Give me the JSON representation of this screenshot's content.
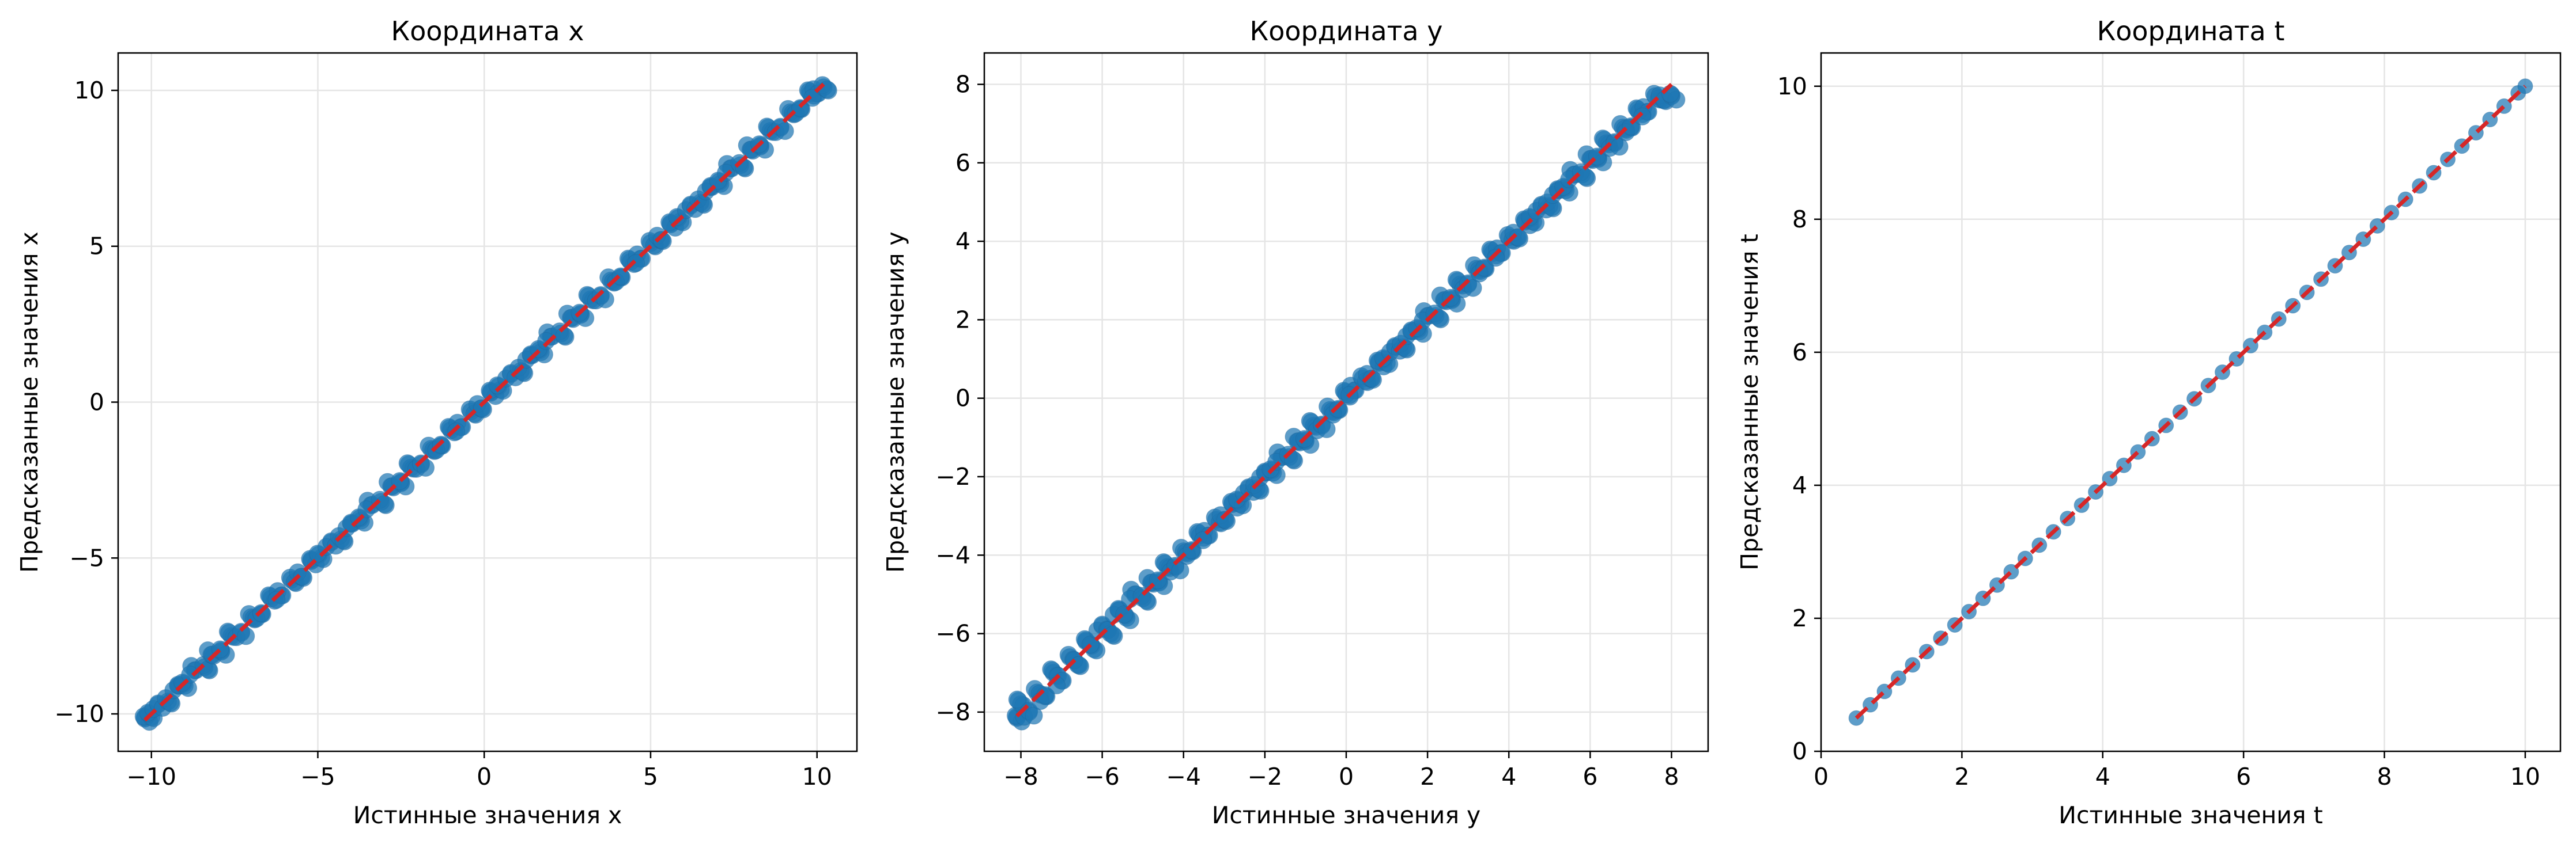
{
  "chart_data": [
    {
      "type": "scatter",
      "title": "Координата x",
      "xlabel": "Истинные значения x",
      "ylabel": "Предсказанные значения x",
      "xlim": [
        -11,
        11.2
      ],
      "ylim": [
        -11.2,
        11.2
      ],
      "xticks": [
        -10,
        -5,
        0,
        5,
        10
      ],
      "yticks": [
        -10,
        -5,
        0,
        5,
        10
      ],
      "xtick_labels": [
        "−10",
        "−5",
        "0",
        "5",
        "10"
      ],
      "ytick_labels": [
        "−10",
        "−5",
        "0",
        "5",
        "10"
      ],
      "grid": true,
      "scatter_color": "#1f77b4",
      "reference_line": {
        "from": [
          -10.2,
          -10.2
        ],
        "to": [
          10.2,
          10.2
        ],
        "color": "#d62728",
        "style": "dashed"
      },
      "series": [
        {
          "x": [
            -10.2,
            -10.0,
            -9.8,
            -9.5,
            -9.2,
            -9.0,
            -8.7,
            -8.4,
            -8.2,
            -7.9,
            -7.6,
            -7.3,
            -7.0,
            -6.7,
            -6.4,
            -6.1,
            -5.8,
            -5.5,
            -5.2,
            -4.9,
            -4.6,
            -4.3,
            -4.0,
            -3.7,
            -3.4,
            -3.1,
            -2.8,
            -2.5,
            -2.2,
            -1.9,
            -1.6,
            -1.3,
            -1.0,
            -0.7,
            -0.4,
            -0.1,
            0.2,
            0.5,
            0.8,
            1.1,
            1.4,
            1.7,
            2.0,
            2.3,
            2.6,
            2.9,
            3.2,
            3.5,
            3.8,
            4.1,
            4.4,
            4.7,
            5.0,
            5.3,
            5.6,
            5.9,
            6.2,
            6.5,
            6.8,
            7.1,
            7.4,
            7.7,
            8.0,
            8.3,
            8.6,
            8.9,
            9.2,
            9.5,
            9.8,
            10.0,
            10.2
          ],
          "y": [
            -10.15,
            -10.1,
            -9.7,
            -9.6,
            -9.1,
            -9.1,
            -8.6,
            -8.5,
            -8.1,
            -8.0,
            -7.5,
            -7.4,
            -6.9,
            -6.8,
            -6.3,
            -6.2,
            -5.7,
            -5.6,
            -5.1,
            -5.0,
            -4.5,
            -4.4,
            -3.9,
            -3.8,
            -3.3,
            -3.2,
            -2.7,
            -2.6,
            -2.1,
            -2.0,
            -1.5,
            -1.4,
            -0.9,
            -0.8,
            -0.3,
            -0.2,
            0.3,
            0.4,
            0.9,
            1.0,
            1.5,
            1.6,
            2.1,
            2.2,
            2.7,
            2.8,
            3.3,
            3.4,
            3.9,
            4.0,
            4.5,
            4.6,
            5.1,
            5.2,
            5.7,
            5.8,
            6.3,
            6.4,
            6.9,
            7.0,
            7.5,
            7.6,
            8.1,
            8.2,
            8.7,
            8.8,
            9.3,
            9.4,
            9.9,
            9.9,
            10.1
          ]
        }
      ]
    },
    {
      "type": "scatter",
      "title": "Координата y",
      "xlabel": "Истинные значения y",
      "ylabel": "Предсказанные значения y",
      "xlim": [
        -8.9,
        8.9
      ],
      "ylim": [
        -9.0,
        8.8
      ],
      "xticks": [
        -8,
        -6,
        -4,
        -2,
        0,
        2,
        4,
        6,
        8
      ],
      "yticks": [
        -8,
        -6,
        -4,
        -2,
        0,
        2,
        4,
        6,
        8
      ],
      "xtick_labels": [
        "−8",
        "−6",
        "−4",
        "−2",
        "0",
        "2",
        "4",
        "6",
        "8"
      ],
      "ytick_labels": [
        "−8",
        "−6",
        "−4",
        "−2",
        "0",
        "2",
        "4",
        "6",
        "8"
      ],
      "grid": true,
      "scatter_color": "#1f77b4",
      "reference_line": {
        "from": [
          -8.1,
          -8.1
        ],
        "to": [
          8.0,
          8.0
        ],
        "color": "#d62728",
        "style": "dashed"
      },
      "series": [
        {
          "x": [
            -8.1,
            -8.0,
            -7.8,
            -7.6,
            -7.4,
            -7.2,
            -7.0,
            -6.8,
            -6.6,
            -6.4,
            -6.2,
            -6.0,
            -5.8,
            -5.6,
            -5.4,
            -5.2,
            -5.0,
            -4.8,
            -4.6,
            -4.4,
            -4.2,
            -4.0,
            -3.8,
            -3.6,
            -3.4,
            -3.2,
            -3.0,
            -2.8,
            -2.6,
            -2.4,
            -2.2,
            -2.0,
            -1.8,
            -1.6,
            -1.4,
            -1.2,
            -1.0,
            -0.8,
            -0.6,
            -0.4,
            -0.2,
            0.0,
            0.2,
            0.4,
            0.6,
            0.8,
            1.0,
            1.2,
            1.4,
            1.6,
            1.8,
            2.0,
            2.2,
            2.4,
            2.6,
            2.8,
            3.0,
            3.2,
            3.4,
            3.6,
            3.8,
            4.0,
            4.2,
            4.4,
            4.6,
            4.8,
            5.0,
            5.2,
            5.4,
            5.6,
            5.8,
            6.0,
            6.2,
            6.4,
            6.6,
            6.8,
            7.0,
            7.2,
            7.4,
            7.6,
            7.8,
            8.0
          ],
          "y": [
            -8.15,
            -7.8,
            -8.0,
            -7.5,
            -7.6,
            -7.0,
            -7.2,
            -6.6,
            -6.8,
            -6.2,
            -6.4,
            -5.8,
            -6.0,
            -5.4,
            -5.6,
            -5.0,
            -5.1,
            -4.7,
            -4.7,
            -4.3,
            -4.3,
            -3.9,
            -3.9,
            -3.5,
            -3.5,
            -3.1,
            -3.1,
            -2.7,
            -2.7,
            -2.3,
            -2.3,
            -1.9,
            -1.9,
            -1.5,
            -1.5,
            -1.1,
            -1.1,
            -0.7,
            -0.7,
            -0.3,
            -0.3,
            0.1,
            0.2,
            0.5,
            0.5,
            0.9,
            0.9,
            1.3,
            1.3,
            1.7,
            1.7,
            2.1,
            2.1,
            2.5,
            2.5,
            2.9,
            2.9,
            3.3,
            3.3,
            3.7,
            3.7,
            4.1,
            4.1,
            4.5,
            4.5,
            4.9,
            4.9,
            5.3,
            5.3,
            5.7,
            5.7,
            6.1,
            6.1,
            6.5,
            6.5,
            6.9,
            6.9,
            7.3,
            7.3,
            7.7,
            7.6,
            7.7
          ]
        }
      ]
    },
    {
      "type": "scatter",
      "title": "Координата t",
      "xlabel": "Истинные значения t",
      "ylabel": "Предсказанные значения t",
      "xlim": [
        0,
        10.5
      ],
      "ylim": [
        0,
        10.5
      ],
      "xticks": [
        0,
        2,
        4,
        6,
        8,
        10
      ],
      "yticks": [
        0,
        2,
        4,
        6,
        8,
        10
      ],
      "xtick_labels": [
        "0",
        "2",
        "4",
        "6",
        "8",
        "10"
      ],
      "ytick_labels": [
        "0",
        "2",
        "4",
        "6",
        "8",
        "10"
      ],
      "grid": true,
      "scatter_color": "#1f77b4",
      "reference_line": {
        "from": [
          0.5,
          0.5
        ],
        "to": [
          10.0,
          10.0
        ],
        "color": "#d62728",
        "style": "dashed"
      },
      "series": [
        {
          "x": [
            0.5,
            0.7,
            0.9,
            1.1,
            1.3,
            1.5,
            1.7,
            1.9,
            2.1,
            2.3,
            2.5,
            2.7,
            2.9,
            3.1,
            3.3,
            3.5,
            3.7,
            3.9,
            4.1,
            4.3,
            4.5,
            4.7,
            4.9,
            5.1,
            5.3,
            5.5,
            5.7,
            5.9,
            6.1,
            6.3,
            6.5,
            6.7,
            6.9,
            7.1,
            7.3,
            7.5,
            7.7,
            7.9,
            8.1,
            8.3,
            8.5,
            8.7,
            8.9,
            9.1,
            9.3,
            9.5,
            9.7,
            9.9,
            10.0
          ],
          "y": [
            0.5,
            0.7,
            0.9,
            1.1,
            1.3,
            1.5,
            1.7,
            1.9,
            2.1,
            2.3,
            2.5,
            2.7,
            2.9,
            3.1,
            3.3,
            3.5,
            3.7,
            3.9,
            4.1,
            4.3,
            4.5,
            4.7,
            4.9,
            5.1,
            5.3,
            5.5,
            5.7,
            5.9,
            6.1,
            6.3,
            6.5,
            6.7,
            6.9,
            7.1,
            7.3,
            7.5,
            7.7,
            7.9,
            8.1,
            8.3,
            8.5,
            8.7,
            8.9,
            9.1,
            9.3,
            9.5,
            9.7,
            9.9,
            10.0
          ]
        }
      ]
    }
  ]
}
